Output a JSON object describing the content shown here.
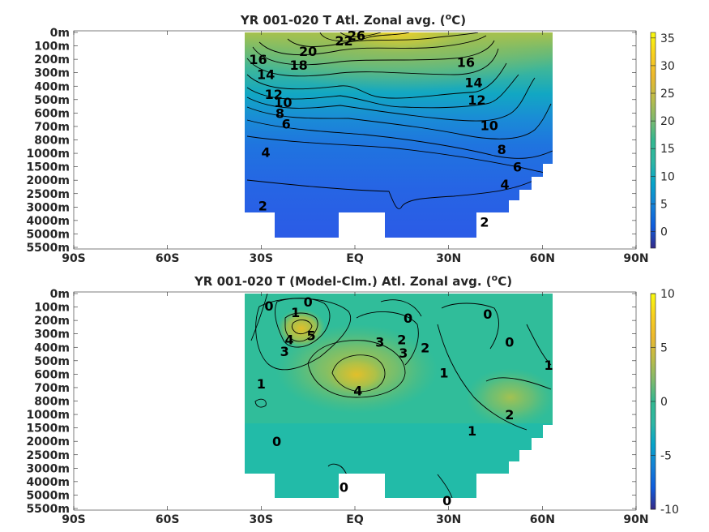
{
  "chart_data": [
    {
      "type": "heatmap",
      "title_text": "YR 001-020 T Atl. Zonal avg. (",
      "title_sup": "o",
      "title_end": "C)",
      "x_ticks": [
        "90S",
        "60S",
        "30S",
        "EQ",
        "30N",
        "60N",
        "90N"
      ],
      "x_values": [
        -90,
        -60,
        -30,
        0,
        30,
        60,
        90
      ],
      "y_ticks": [
        "0m",
        "100m",
        "200m",
        "300m",
        "400m",
        "500m",
        "600m",
        "700m",
        "800m",
        "1000m",
        "1500m",
        "2000m",
        "2500m",
        "3000m",
        "4000m",
        "5000m",
        "5500m"
      ],
      "colorbar": {
        "ticks": [
          "35",
          "30",
          "25",
          "20",
          "15",
          "10",
          "5",
          "0"
        ],
        "range": [
          -3,
          36
        ]
      },
      "contour_labels": [
        {
          "text": "26",
          "lat": 0.5,
          "lev": 0.2
        },
        {
          "text": "22",
          "lat": -3.5,
          "lev": 0.6
        },
        {
          "text": "20",
          "lat": -15,
          "lev": 1.4
        },
        {
          "text": "18",
          "lat": -18,
          "lev": 2.4
        },
        {
          "text": "16",
          "lat": -31,
          "lev": 2.0
        },
        {
          "text": "14",
          "lat": -28.5,
          "lev": 3.1
        },
        {
          "text": "12",
          "lat": -26,
          "lev": 4.6
        },
        {
          "text": "10",
          "lat": -23,
          "lev": 5.2
        },
        {
          "text": "8",
          "lat": -24,
          "lev": 6.0
        },
        {
          "text": "6",
          "lat": -22,
          "lev": 6.8
        },
        {
          "text": "4",
          "lat": -28.5,
          "lev": 8.9
        },
        {
          "text": "2",
          "lat": -29.5,
          "lev": 12.9
        },
        {
          "text": "16",
          "lat": 35.5,
          "lev": 2.2
        },
        {
          "text": "14",
          "lat": 38,
          "lev": 3.7
        },
        {
          "text": "12",
          "lat": 39,
          "lev": 5.0
        },
        {
          "text": "10",
          "lat": 43,
          "lev": 6.9
        },
        {
          "text": "8",
          "lat": 47,
          "lev": 8.7
        },
        {
          "text": "6",
          "lat": 52,
          "lev": 10.0
        },
        {
          "text": "4",
          "lat": 48,
          "lev": 11.3
        },
        {
          "text": "2",
          "lat": 41.5,
          "lev": 14.1
        }
      ]
    },
    {
      "type": "heatmap",
      "title_text": "YR 001-020 T (Model-Clm.) Atl. Zonal avg. (",
      "title_sup": "o",
      "title_end": "C)",
      "x_ticks": [
        "90S",
        "60S",
        "30S",
        "EQ",
        "30N",
        "60N",
        "90N"
      ],
      "x_values": [
        -90,
        -60,
        -30,
        0,
        30,
        60,
        90
      ],
      "y_ticks": [
        "0m",
        "100m",
        "200m",
        "300m",
        "400m",
        "500m",
        "600m",
        "700m",
        "800m",
        "1000m",
        "1500m",
        "2000m",
        "2500m",
        "3000m",
        "4000m",
        "5000m",
        "5500m"
      ],
      "colorbar": {
        "ticks": [
          "10",
          "5",
          "0",
          "-5",
          "-10"
        ],
        "range": [
          -10,
          10
        ]
      },
      "contour_labels": [
        {
          "text": "0",
          "lat": -27.5,
          "lev": 0.9
        },
        {
          "text": "0",
          "lat": -15,
          "lev": 0.6
        },
        {
          "text": "1",
          "lat": -19,
          "lev": 1.4
        },
        {
          "text": "5",
          "lat": -14,
          "lev": 3.1
        },
        {
          "text": "4",
          "lat": -21,
          "lev": 3.4
        },
        {
          "text": "3",
          "lat": -22.5,
          "lev": 4.3
        },
        {
          "text": "1",
          "lat": -30,
          "lev": 6.7
        },
        {
          "text": "0",
          "lat": -25,
          "lev": 11.0
        },
        {
          "text": "4",
          "lat": 1,
          "lev": 7.2
        },
        {
          "text": "3",
          "lat": 8,
          "lev": 3.6
        },
        {
          "text": "2",
          "lat": 15,
          "lev": 3.4
        },
        {
          "text": "3",
          "lat": 15.5,
          "lev": 4.4
        },
        {
          "text": "2",
          "lat": 22.5,
          "lev": 4.0
        },
        {
          "text": "0",
          "lat": 17,
          "lev": 1.8
        },
        {
          "text": "1",
          "lat": 28.5,
          "lev": 5.9
        },
        {
          "text": "0",
          "lat": 42.5,
          "lev": 1.5
        },
        {
          "text": "0",
          "lat": 49.5,
          "lev": 3.6
        },
        {
          "text": "1",
          "lat": 62,
          "lev": 5.3
        },
        {
          "text": "2",
          "lat": 49.5,
          "lev": 9.0
        },
        {
          "text": "1",
          "lat": 37.5,
          "lev": 10.2
        },
        {
          "text": "0",
          "lat": -3.5,
          "lev": 14.4
        },
        {
          "text": "0",
          "lat": 29.5,
          "lev": 15.4
        }
      ]
    }
  ]
}
